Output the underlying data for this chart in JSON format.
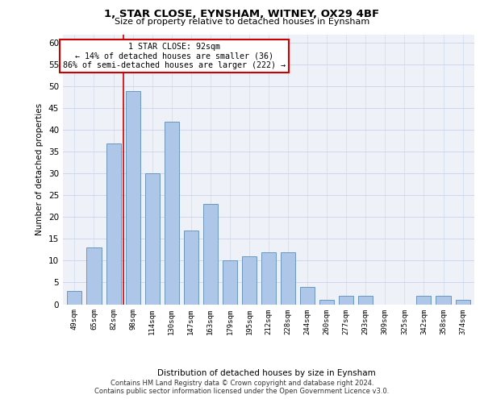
{
  "title": "1, STAR CLOSE, EYNSHAM, WITNEY, OX29 4BF",
  "subtitle": "Size of property relative to detached houses in Eynsham",
  "xlabel": "Distribution of detached houses by size in Eynsham",
  "ylabel": "Number of detached properties",
  "categories": [
    "49sqm",
    "65sqm",
    "82sqm",
    "98sqm",
    "114sqm",
    "130sqm",
    "147sqm",
    "163sqm",
    "179sqm",
    "195sqm",
    "212sqm",
    "228sqm",
    "244sqm",
    "260sqm",
    "277sqm",
    "293sqm",
    "309sqm",
    "325sqm",
    "342sqm",
    "358sqm",
    "374sqm"
  ],
  "values": [
    3,
    13,
    37,
    49,
    30,
    42,
    17,
    23,
    10,
    11,
    12,
    12,
    4,
    1,
    2,
    2,
    0,
    0,
    2,
    2,
    1
  ],
  "bar_color": "#aec6e8",
  "bar_edge_color": "#5b8db8",
  "annotation_text_line1": "1 STAR CLOSE: 92sqm",
  "annotation_text_line2": "← 14% of detached houses are smaller (36)",
  "annotation_text_line3": "86% of semi-detached houses are larger (222) →",
  "annotation_box_facecolor": "#ffffff",
  "annotation_box_edgecolor": "#cc0000",
  "red_line_color": "#cc0000",
  "ylim": [
    0,
    62
  ],
  "yticks": [
    0,
    5,
    10,
    15,
    20,
    25,
    30,
    35,
    40,
    45,
    50,
    55,
    60
  ],
  "background_color": "#eef2f8",
  "footer_line1": "Contains HM Land Registry data © Crown copyright and database right 2024.",
  "footer_line2": "Contains public sector information licensed under the Open Government Licence v3.0."
}
